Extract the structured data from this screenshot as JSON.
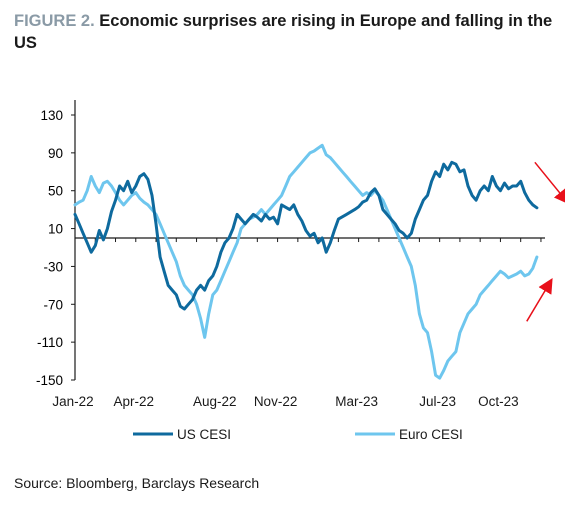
{
  "figure": {
    "label": "FIGURE 2.",
    "title": "Economic surprises are rising in Europe and falling in the US",
    "source": "Source: Bloomberg, Barclays Research"
  },
  "chart_data": {
    "type": "line",
    "title": "Economic surprises are rising in Europe and falling in the US",
    "xlabel": "",
    "ylabel": "",
    "ylim": [
      -150,
      130
    ],
    "yticks": [
      130,
      90,
      50,
      10,
      -30,
      -70,
      -110,
      -150
    ],
    "xticks": [
      "Jan-22",
      "Apr-22",
      "Aug-22",
      "Nov-22",
      "Mar-23",
      "Jul-23",
      "Oct-23"
    ],
    "xtick_positions": [
      0,
      3,
      7,
      10,
      14,
      18,
      21
    ],
    "xlim": [
      0,
      23.2
    ],
    "grid": false,
    "legend": "bottom",
    "annotations": [
      "red arrow pointing down-right near US CESI end",
      "red arrow pointing up-right near Euro CESI end"
    ],
    "series": [
      {
        "name": "US CESI",
        "color": "#0e6a9e",
        "points": [
          [
            0,
            25
          ],
          [
            0.2,
            15
          ],
          [
            0.4,
            5
          ],
          [
            0.6,
            -5
          ],
          [
            0.8,
            -15
          ],
          [
            1,
            -8
          ],
          [
            1.2,
            8
          ],
          [
            1.4,
            -2
          ],
          [
            1.6,
            10
          ],
          [
            1.8,
            28
          ],
          [
            2,
            40
          ],
          [
            2.2,
            55
          ],
          [
            2.4,
            50
          ],
          [
            2.6,
            60
          ],
          [
            2.8,
            48
          ],
          [
            3,
            55
          ],
          [
            3.2,
            65
          ],
          [
            3.4,
            68
          ],
          [
            3.6,
            62
          ],
          [
            3.8,
            45
          ],
          [
            4,
            15
          ],
          [
            4.2,
            -20
          ],
          [
            4.4,
            -35
          ],
          [
            4.6,
            -50
          ],
          [
            4.8,
            -55
          ],
          [
            5,
            -60
          ],
          [
            5.2,
            -72
          ],
          [
            5.4,
            -75
          ],
          [
            5.6,
            -70
          ],
          [
            5.8,
            -65
          ],
          [
            6,
            -55
          ],
          [
            6.2,
            -50
          ],
          [
            6.4,
            -55
          ],
          [
            6.6,
            -45
          ],
          [
            6.8,
            -40
          ],
          [
            7,
            -30
          ],
          [
            7.2,
            -15
          ],
          [
            7.4,
            -5
          ],
          [
            7.6,
            0
          ],
          [
            7.8,
            10
          ],
          [
            8,
            25
          ],
          [
            8.2,
            20
          ],
          [
            8.4,
            15
          ],
          [
            8.6,
            20
          ],
          [
            8.8,
            25
          ],
          [
            9,
            22
          ],
          [
            9.2,
            18
          ],
          [
            9.4,
            25
          ],
          [
            9.6,
            20
          ],
          [
            9.8,
            22
          ],
          [
            10,
            15
          ],
          [
            10.2,
            35
          ],
          [
            10.6,
            30
          ],
          [
            10.8,
            35
          ],
          [
            11,
            25
          ],
          [
            11.2,
            18
          ],
          [
            11.4,
            8
          ],
          [
            11.6,
            2
          ],
          [
            11.8,
            5
          ],
          [
            12,
            -5
          ],
          [
            12.2,
            0
          ],
          [
            12.4,
            -15
          ],
          [
            12.6,
            -5
          ],
          [
            12.8,
            8
          ],
          [
            13,
            20
          ],
          [
            13.4,
            25
          ],
          [
            13.8,
            30
          ],
          [
            14,
            33
          ],
          [
            14.2,
            38
          ],
          [
            14.4,
            40
          ],
          [
            14.6,
            48
          ],
          [
            14.8,
            52
          ],
          [
            15,
            45
          ],
          [
            15.2,
            30
          ],
          [
            15.4,
            25
          ],
          [
            15.6,
            20
          ],
          [
            15.8,
            15
          ],
          [
            16,
            8
          ],
          [
            16.2,
            5
          ],
          [
            16.4,
            0
          ],
          [
            16.6,
            5
          ],
          [
            16.8,
            20
          ],
          [
            17,
            30
          ],
          [
            17.2,
            40
          ],
          [
            17.4,
            45
          ],
          [
            17.6,
            60
          ],
          [
            17.8,
            70
          ],
          [
            18,
            65
          ],
          [
            18.2,
            78
          ],
          [
            18.4,
            72
          ],
          [
            18.6,
            80
          ],
          [
            18.8,
            78
          ],
          [
            19,
            70
          ],
          [
            19.2,
            72
          ],
          [
            19.4,
            55
          ],
          [
            19.6,
            45
          ],
          [
            19.8,
            40
          ],
          [
            20,
            50
          ],
          [
            20.2,
            55
          ],
          [
            20.4,
            50
          ],
          [
            20.6,
            65
          ],
          [
            20.8,
            55
          ],
          [
            21,
            50
          ],
          [
            21.2,
            58
          ],
          [
            21.4,
            52
          ],
          [
            21.6,
            55
          ],
          [
            21.8,
            55
          ],
          [
            22,
            60
          ],
          [
            22.2,
            48
          ],
          [
            22.4,
            40
          ],
          [
            22.6,
            35
          ],
          [
            22.8,
            32
          ]
        ]
      },
      {
        "name": "Euro CESI",
        "color": "#6ec6ee",
        "points": [
          [
            0,
            35
          ],
          [
            0.2,
            38
          ],
          [
            0.4,
            40
          ],
          [
            0.6,
            50
          ],
          [
            0.8,
            65
          ],
          [
            1,
            55
          ],
          [
            1.2,
            48
          ],
          [
            1.4,
            58
          ],
          [
            1.6,
            60
          ],
          [
            1.8,
            55
          ],
          [
            2,
            48
          ],
          [
            2.2,
            40
          ],
          [
            2.4,
            35
          ],
          [
            2.6,
            40
          ],
          [
            2.8,
            45
          ],
          [
            3,
            48
          ],
          [
            3.2,
            42
          ],
          [
            3.4,
            38
          ],
          [
            3.6,
            35
          ],
          [
            3.8,
            30
          ],
          [
            4,
            25
          ],
          [
            4.2,
            15
          ],
          [
            4.4,
            5
          ],
          [
            4.6,
            -5
          ],
          [
            4.8,
            -15
          ],
          [
            5,
            -25
          ],
          [
            5.2,
            -40
          ],
          [
            5.4,
            -50
          ],
          [
            5.6,
            -55
          ],
          [
            5.8,
            -60
          ],
          [
            6,
            -70
          ],
          [
            6.2,
            -85
          ],
          [
            6.4,
            -105
          ],
          [
            6.6,
            -80
          ],
          [
            6.8,
            -60
          ],
          [
            7,
            -55
          ],
          [
            7.2,
            -45
          ],
          [
            7.4,
            -35
          ],
          [
            7.6,
            -25
          ],
          [
            7.8,
            -15
          ],
          [
            8,
            -5
          ],
          [
            8.2,
            10
          ],
          [
            8.4,
            15
          ],
          [
            8.6,
            20
          ],
          [
            8.8,
            22
          ],
          [
            9,
            25
          ],
          [
            9.2,
            30
          ],
          [
            9.4,
            25
          ],
          [
            9.6,
            30
          ],
          [
            9.8,
            35
          ],
          [
            10,
            40
          ],
          [
            10.2,
            45
          ],
          [
            10.4,
            55
          ],
          [
            10.6,
            65
          ],
          [
            10.8,
            70
          ],
          [
            11,
            75
          ],
          [
            11.2,
            80
          ],
          [
            11.4,
            85
          ],
          [
            11.6,
            90
          ],
          [
            11.8,
            92
          ],
          [
            12,
            95
          ],
          [
            12.2,
            98
          ],
          [
            12.4,
            88
          ],
          [
            12.6,
            85
          ],
          [
            12.8,
            80
          ],
          [
            13,
            75
          ],
          [
            13.2,
            70
          ],
          [
            13.4,
            65
          ],
          [
            13.6,
            60
          ],
          [
            13.8,
            55
          ],
          [
            14,
            50
          ],
          [
            14.2,
            45
          ],
          [
            14.4,
            48
          ],
          [
            14.6,
            45
          ],
          [
            14.8,
            50
          ],
          [
            15,
            45
          ],
          [
            15.2,
            40
          ],
          [
            15.4,
            30
          ],
          [
            15.6,
            20
          ],
          [
            15.8,
            10
          ],
          [
            16,
            0
          ],
          [
            16.2,
            -10
          ],
          [
            16.4,
            -20
          ],
          [
            16.6,
            -30
          ],
          [
            16.8,
            -50
          ],
          [
            17,
            -80
          ],
          [
            17.2,
            -95
          ],
          [
            17.4,
            -100
          ],
          [
            17.6,
            -120
          ],
          [
            17.8,
            -145
          ],
          [
            18,
            -148
          ],
          [
            18.2,
            -140
          ],
          [
            18.4,
            -130
          ],
          [
            18.6,
            -125
          ],
          [
            18.8,
            -120
          ],
          [
            19,
            -100
          ],
          [
            19.2,
            -90
          ],
          [
            19.4,
            -80
          ],
          [
            19.6,
            -75
          ],
          [
            19.8,
            -70
          ],
          [
            20,
            -60
          ],
          [
            20.2,
            -55
          ],
          [
            20.4,
            -50
          ],
          [
            20.6,
            -45
          ],
          [
            20.8,
            -40
          ],
          [
            21,
            -35
          ],
          [
            21.2,
            -38
          ],
          [
            21.4,
            -42
          ],
          [
            21.6,
            -40
          ],
          [
            21.8,
            -38
          ],
          [
            22,
            -35
          ],
          [
            22.2,
            -40
          ],
          [
            22.4,
            -38
          ],
          [
            22.6,
            -32
          ],
          [
            22.8,
            -20
          ]
        ]
      }
    ]
  }
}
